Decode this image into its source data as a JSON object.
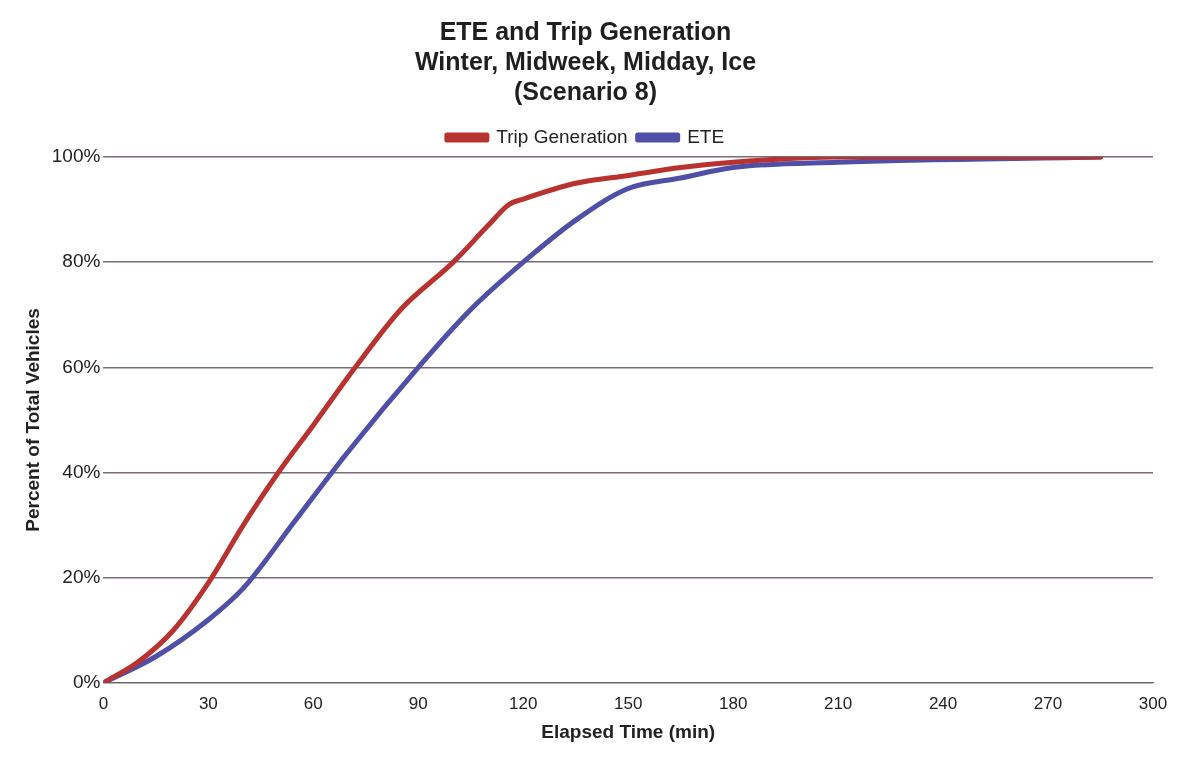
{
  "chart_data": {
    "type": "line",
    "title": "ETE and Trip Generation\nWinter, Midweek, Midday, Ice\n(Scenario 8)",
    "xlabel": "Elapsed Time (min)",
    "ylabel": "Percent of Total Vehicles",
    "xlim": [
      0,
      300
    ],
    "xticks": [
      0,
      30,
      60,
      90,
      120,
      150,
      180,
      210,
      240,
      270,
      300
    ],
    "ylim": [
      0,
      100
    ],
    "yticks": [
      {
        "value": 0,
        "label": "0%"
      },
      {
        "value": 20,
        "label": "20%"
      },
      {
        "value": 40,
        "label": "40%"
      },
      {
        "value": 60,
        "label": "60%"
      },
      {
        "value": 80,
        "label": "80%"
      },
      {
        "value": 100,
        "label": "100%"
      }
    ],
    "grid": "y",
    "legend": "top",
    "marker": "none",
    "line_style": "solid",
    "series": [
      {
        "name": "Trip Generation",
        "color": "#b83230",
        "x": [
          0,
          10,
          20,
          30,
          40,
          50,
          60,
          72,
          85,
          100,
          110,
          116,
          120,
          135,
          150,
          165,
          180,
          210,
          285
        ],
        "values": [
          0,
          4,
          10,
          19,
          30,
          40,
          49,
          60,
          71,
          80,
          87,
          91,
          92,
          95,
          96.5,
          98,
          99,
          100,
          100
        ]
      },
      {
        "name": "ETE",
        "color": "#4f4fa8",
        "x": [
          0,
          15,
          30,
          40,
          55,
          70,
          90,
          105,
          120,
          135,
          150,
          165,
          180,
          210,
          285
        ],
        "values": [
          0,
          5,
          12,
          18,
          31,
          44,
          60,
          71,
          80,
          88,
          94,
          96,
          98,
          99,
          100
        ]
      }
    ]
  }
}
